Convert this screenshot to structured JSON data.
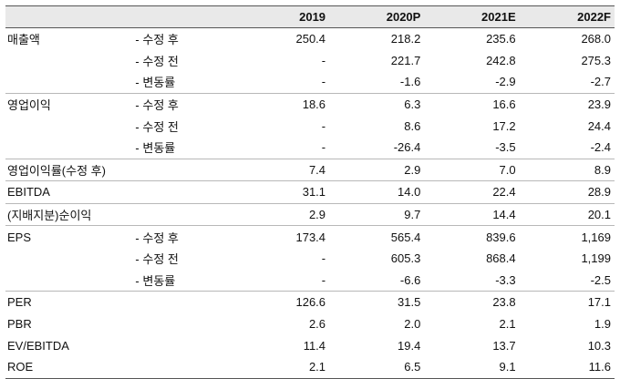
{
  "columns": [
    "",
    "",
    "2019",
    "2020P",
    "2021E",
    "2022F"
  ],
  "rows": [
    {
      "label": "매출액",
      "sub": "- 수정 후",
      "values": [
        "250.4",
        "218.2",
        "235.6",
        "268.0"
      ]
    },
    {
      "label": "",
      "sub": "- 수정 전",
      "values": [
        "-",
        "221.7",
        "242.8",
        "275.3"
      ]
    },
    {
      "label": "",
      "sub": "- 변동률",
      "values": [
        "-",
        "-1.6",
        "-2.9",
        "-2.7"
      ]
    },
    {
      "label": "영업이익",
      "sub": "- 수정 후",
      "values": [
        "18.6",
        "6.3",
        "16.6",
        "23.9"
      ]
    },
    {
      "label": "",
      "sub": "- 수정 전",
      "values": [
        "-",
        "8.6",
        "17.2",
        "24.4"
      ]
    },
    {
      "label": "",
      "sub": "- 변동률",
      "values": [
        "-",
        "-26.4",
        "-3.5",
        "-2.4"
      ]
    },
    {
      "label": "영업이익률(수정 후)",
      "sub": "",
      "values": [
        "7.4",
        "2.9",
        "7.0",
        "8.9"
      ]
    },
    {
      "label": "EBITDA",
      "sub": "",
      "values": [
        "31.1",
        "14.0",
        "22.4",
        "28.9"
      ]
    },
    {
      "label": "(지배지분)순이익",
      "sub": "",
      "values": [
        "2.9",
        "9.7",
        "14.4",
        "20.1"
      ]
    },
    {
      "label": "EPS",
      "sub": "- 수정 후",
      "values": [
        "173.4",
        "565.4",
        "839.6",
        "1,169"
      ]
    },
    {
      "label": "",
      "sub": "- 수정 전",
      "values": [
        "-",
        "605.3",
        "868.4",
        "1,199"
      ]
    },
    {
      "label": "",
      "sub": "- 변동률",
      "values": [
        "-",
        "-6.6",
        "-3.3",
        "-2.5"
      ]
    },
    {
      "label": "PER",
      "sub": "",
      "values": [
        "126.6",
        "31.5",
        "23.8",
        "17.1"
      ]
    },
    {
      "label": "PBR",
      "sub": "",
      "values": [
        "2.6",
        "2.0",
        "2.1",
        "1.9"
      ]
    },
    {
      "label": "EV/EBITDA",
      "sub": "",
      "values": [
        "11.4",
        "19.4",
        "13.7",
        "10.3"
      ]
    },
    {
      "label": "ROE",
      "sub": "",
      "values": [
        "2.1",
        "6.5",
        "9.1",
        "11.6"
      ]
    }
  ]
}
